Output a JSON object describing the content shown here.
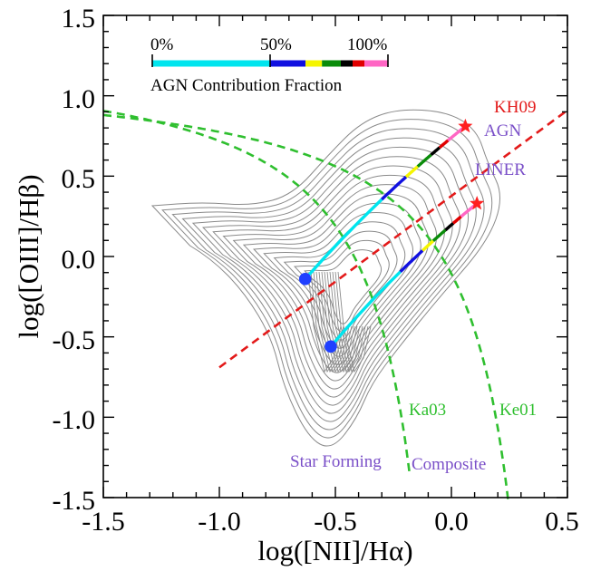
{
  "chart_data": {
    "type": "line",
    "xlabel": "log([NII]/Hα)",
    "ylabel": "log([OIII]/Hβ)",
    "xlim": [
      -1.5,
      0.5
    ],
    "ylim": [
      -1.5,
      1.5
    ],
    "x_ticks": [
      "-1.5",
      "-1.0",
      "-0.5",
      "0.0",
      "0.5"
    ],
    "y_ticks": [
      "-1.5",
      "-1.0",
      "-0.5",
      "0.0",
      "0.5",
      "1.0",
      "1.5"
    ],
    "colorbar": {
      "title": "AGN Contribution Fraction",
      "tick_labels": [
        "0%",
        "50%",
        "100%"
      ],
      "segments": [
        {
          "from": 0.0,
          "to": 0.5,
          "color": "#00e5ee"
        },
        {
          "from": 0.5,
          "to": 0.65,
          "color": "#1010e0"
        },
        {
          "from": 0.65,
          "to": 0.72,
          "color": "#f5f500"
        },
        {
          "from": 0.72,
          "to": 0.8,
          "color": "#0a8c0a"
        },
        {
          "from": 0.8,
          "to": 0.85,
          "color": "#000000"
        },
        {
          "from": 0.85,
          "to": 0.9,
          "color": "#e00000"
        },
        {
          "from": 0.9,
          "to": 1.0,
          "color": "#ff66c4"
        }
      ]
    },
    "demarcation_lines": [
      {
        "name": "Ka03",
        "color": "#2fbf2f",
        "style": "dashed"
      },
      {
        "name": "Ke01",
        "color": "#2fbf2f",
        "style": "dashed"
      },
      {
        "name": "KH09",
        "color": "#e31a1a",
        "style": "dashed"
      }
    ],
    "mixing_tracks": [
      {
        "start": [
          -0.63,
          -0.14
        ],
        "end": [
          0.06,
          0.81
        ],
        "breaks": [
          [
            -0.43,
            0.11
          ],
          [
            -0.35,
            0.28
          ],
          [
            -0.17,
            0.47
          ],
          [
            0.06,
            0.81
          ]
        ]
      },
      {
        "start": [
          -0.52,
          -0.56
        ],
        "end": [
          0.11,
          0.33
        ],
        "breaks": [
          [
            -0.36,
            -0.33
          ],
          [
            -0.28,
            -0.18
          ],
          [
            -0.09,
            0.04
          ],
          [
            0.11,
            0.33
          ]
        ]
      }
    ],
    "region_labels": [
      {
        "text": "AGN",
        "color": "#7a4fc8"
      },
      {
        "text": "LINER",
        "color": "#7a4fc8"
      },
      {
        "text": "Star Forming",
        "color": "#7a4fc8"
      },
      {
        "text": "Composite",
        "color": "#7a4fc8"
      },
      {
        "text": "KH09",
        "color": "#e31a1a"
      },
      {
        "text": "Ka03",
        "color": "#2fbf2f"
      },
      {
        "text": "Ke01",
        "color": "#2fbf2f"
      }
    ],
    "contours": "grey density contours of galaxy distribution"
  }
}
